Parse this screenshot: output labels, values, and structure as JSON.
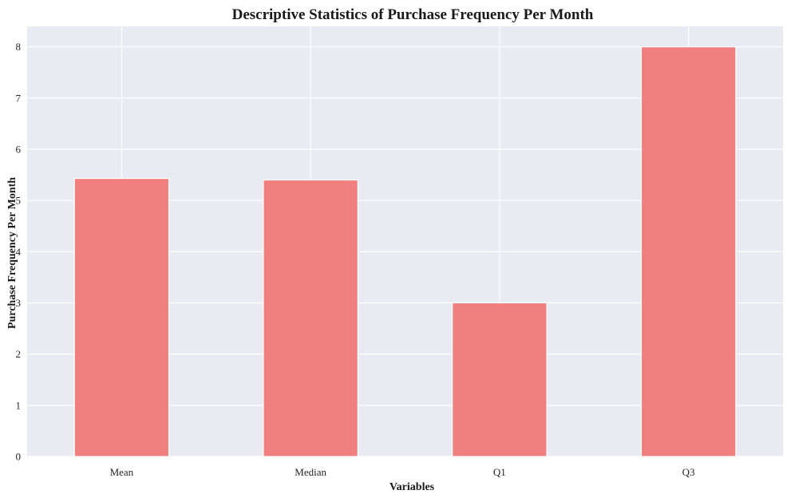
{
  "chart_data": {
    "type": "bar",
    "title": "Descriptive Statistics of Purchase Frequency Per Month",
    "xlabel": "Variables",
    "ylabel": "Purchase Frequency Per Month",
    "categories": [
      "Mean",
      "Median",
      "Q1",
      "Q3"
    ],
    "values": [
      5.43,
      5.4,
      3.0,
      8.0
    ],
    "ylim": [
      0,
      8.4
    ],
    "yticks": [
      0,
      1,
      2,
      3,
      4,
      5,
      6,
      7,
      8
    ],
    "grid": true,
    "legend": "none",
    "colors": {
      "bar": "#f08080",
      "bar_edge": "#ffffff",
      "plot_background": "#eaeaf2",
      "grid": "#ffffff"
    }
  }
}
